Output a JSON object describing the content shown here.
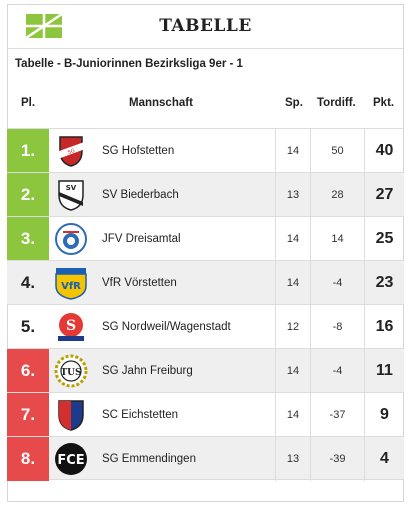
{
  "header": {
    "title": "TABELLE"
  },
  "league": {
    "subtitle": "Tabelle - B-Juniorinnen Bezirksliga 9er - 1"
  },
  "columns": {
    "pos": "Pl.",
    "team": "Mannschaft",
    "games": "Sp.",
    "goal_diff": "Tordiff.",
    "points": "Pkt."
  },
  "colors": {
    "accent_green": "#8cc63f",
    "relegation_red": "#e64a4a",
    "row_alt": "#efefef"
  },
  "rows": [
    {
      "pos": "1.",
      "team": "SG Hofstetten",
      "games": "14",
      "goal_diff": "50",
      "points": "40",
      "zone": "green",
      "crest": "red-black-shield-crest"
    },
    {
      "pos": "2.",
      "team": "SV Biederbach",
      "games": "13",
      "goal_diff": "28",
      "points": "27",
      "zone": "green",
      "crest": "sv-shield-crest"
    },
    {
      "pos": "3.",
      "team": "JFV Dreisamtal",
      "games": "14",
      "goal_diff": "14",
      "points": "25",
      "zone": "green",
      "crest": "jfv-ball-crest"
    },
    {
      "pos": "4.",
      "team": "VfR Vörstetten",
      "games": "14",
      "goal_diff": "-4",
      "points": "23",
      "zone": "plain",
      "crest": "vfr-blue-yellow-crest"
    },
    {
      "pos": "5.",
      "team": "SG Nordweil/Wagenstadt",
      "games": "12",
      "goal_diff": "-8",
      "points": "16",
      "zone": "plain",
      "crest": "s-red-blue-crest"
    },
    {
      "pos": "6.",
      "team": "SG Jahn Freiburg",
      "games": "14",
      "goal_diff": "-4",
      "points": "11",
      "zone": "red",
      "crest": "tus-wreath-crest"
    },
    {
      "pos": "7.",
      "team": "SC Eichstetten",
      "games": "14",
      "goal_diff": "-37",
      "points": "9",
      "zone": "red",
      "crest": "red-blue-shield-crest"
    },
    {
      "pos": "8.",
      "team": "SG Emmendingen",
      "games": "13",
      "goal_diff": "-39",
      "points": "4",
      "zone": "red",
      "crest": "fce-black-crest"
    }
  ]
}
